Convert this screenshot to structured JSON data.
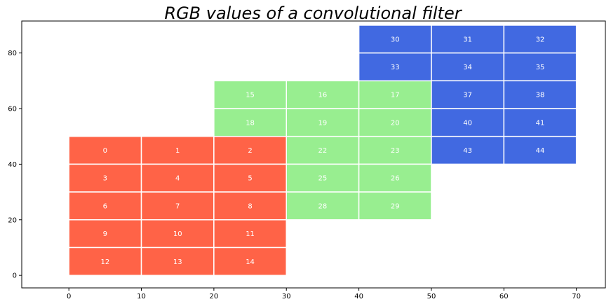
{
  "chart_data": {
    "type": "heatmap",
    "title": "RGB values of a convolutional filter",
    "xlabel": "",
    "ylabel": "",
    "xlim": [
      -6.5,
      74
    ],
    "ylim": [
      -4.5,
      91.5
    ],
    "xticks": [
      0,
      10,
      20,
      30,
      40,
      50,
      60,
      70
    ],
    "yticks": [
      0,
      20,
      40,
      60,
      80
    ],
    "grid": false,
    "layers": [
      {
        "color": "#ff6347",
        "cells": [
          {
            "x0": 0,
            "y0": 40,
            "label": "0"
          },
          {
            "x0": 10,
            "y0": 40,
            "label": "1"
          },
          {
            "x0": 20,
            "y0": 40,
            "label": "2"
          },
          {
            "x0": 0,
            "y0": 30,
            "label": "3"
          },
          {
            "x0": 10,
            "y0": 30,
            "label": "4"
          },
          {
            "x0": 20,
            "y0": 30,
            "label": "5"
          },
          {
            "x0": 0,
            "y0": 20,
            "label": "6"
          },
          {
            "x0": 10,
            "y0": 20,
            "label": "7"
          },
          {
            "x0": 20,
            "y0": 20,
            "label": "8"
          },
          {
            "x0": 0,
            "y0": 10,
            "label": "9"
          },
          {
            "x0": 10,
            "y0": 10,
            "label": "10"
          },
          {
            "x0": 20,
            "y0": 10,
            "label": "11"
          },
          {
            "x0": 0,
            "y0": 0,
            "label": "12"
          },
          {
            "x0": 10,
            "y0": 0,
            "label": "13"
          },
          {
            "x0": 20,
            "y0": 0,
            "label": "14"
          }
        ]
      },
      {
        "color": "#98ee90",
        "cells": [
          {
            "x0": 20,
            "y0": 60,
            "label": "15"
          },
          {
            "x0": 30,
            "y0": 60,
            "label": "16"
          },
          {
            "x0": 40,
            "y0": 60,
            "label": "17"
          },
          {
            "x0": 20,
            "y0": 50,
            "label": "18"
          },
          {
            "x0": 30,
            "y0": 50,
            "label": "19"
          },
          {
            "x0": 40,
            "y0": 50,
            "label": "20"
          },
          {
            "x0": 30,
            "y0": 40,
            "label": "22"
          },
          {
            "x0": 40,
            "y0": 40,
            "label": "23"
          },
          {
            "x0": 30,
            "y0": 30,
            "label": "25"
          },
          {
            "x0": 40,
            "y0": 30,
            "label": "26"
          },
          {
            "x0": 30,
            "y0": 20,
            "label": "28"
          },
          {
            "x0": 40,
            "y0": 20,
            "label": "29"
          }
        ]
      },
      {
        "color": "#4169e1",
        "cells": [
          {
            "x0": 40,
            "y0": 80,
            "label": "30"
          },
          {
            "x0": 50,
            "y0": 80,
            "label": "31"
          },
          {
            "x0": 60,
            "y0": 80,
            "label": "32"
          },
          {
            "x0": 40,
            "y0": 70,
            "label": "33"
          },
          {
            "x0": 50,
            "y0": 70,
            "label": "34"
          },
          {
            "x0": 60,
            "y0": 70,
            "label": "35"
          },
          {
            "x0": 50,
            "y0": 60,
            "label": "37"
          },
          {
            "x0": 60,
            "y0": 60,
            "label": "38"
          },
          {
            "x0": 50,
            "y0": 50,
            "label": "40"
          },
          {
            "x0": 60,
            "y0": 50,
            "label": "41"
          },
          {
            "x0": 50,
            "y0": 40,
            "label": "43"
          },
          {
            "x0": 60,
            "y0": 40,
            "label": "44"
          }
        ]
      }
    ],
    "cell_size": 10
  }
}
